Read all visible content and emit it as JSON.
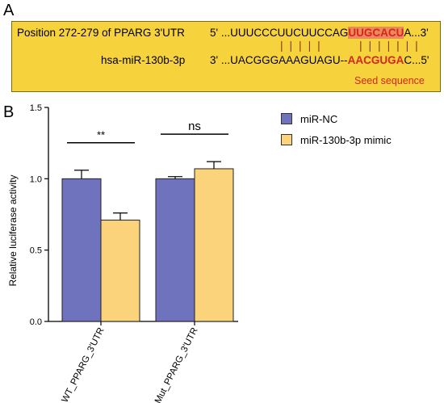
{
  "panel_labels": {
    "a": "A",
    "b": "B"
  },
  "sequence_panel": {
    "target_label": "Position 272-279 of PPARG 3'UTR",
    "target_prefix": "5' ...UUUCCCUUCUUCCAG",
    "target_seed": "UUGCACU",
    "target_suffix": "A...3'",
    "mirna_label": "hsa-miR-130b-3p",
    "mirna_prefix": "3' ...UACGGGAAAGUAGU--",
    "mirna_seed": "AACGUGA",
    "mirna_suffix": "C...5'",
    "seed_caption": "Seed sequence",
    "colors": {
      "background": "#f6d23c",
      "seed": "#d8241f",
      "highlight": "#ea8a5c"
    }
  },
  "chart_data": {
    "type": "bar",
    "categories": [
      "WT_PPARG_3'UTR",
      "Mut_PPARG_3'UTR"
    ],
    "series": [
      {
        "name": "miR-NC",
        "values": [
          1.0,
          1.0
        ],
        "errors": [
          0.06,
          0.015
        ],
        "color": "#6f73bd"
      },
      {
        "name": "miR-130b-3p mimic",
        "values": [
          0.71,
          1.07
        ],
        "errors": [
          0.05,
          0.05
        ],
        "color": "#fad37a"
      }
    ],
    "ylabel": "Relative luciferase activity",
    "xlabel": "",
    "ylim": [
      0,
      1.5
    ],
    "yticks": [
      "0.0",
      "0.5",
      "1.0",
      "1.5"
    ],
    "significance": [
      "**",
      "ns"
    ],
    "legend_position": "top-right",
    "grid": false
  }
}
